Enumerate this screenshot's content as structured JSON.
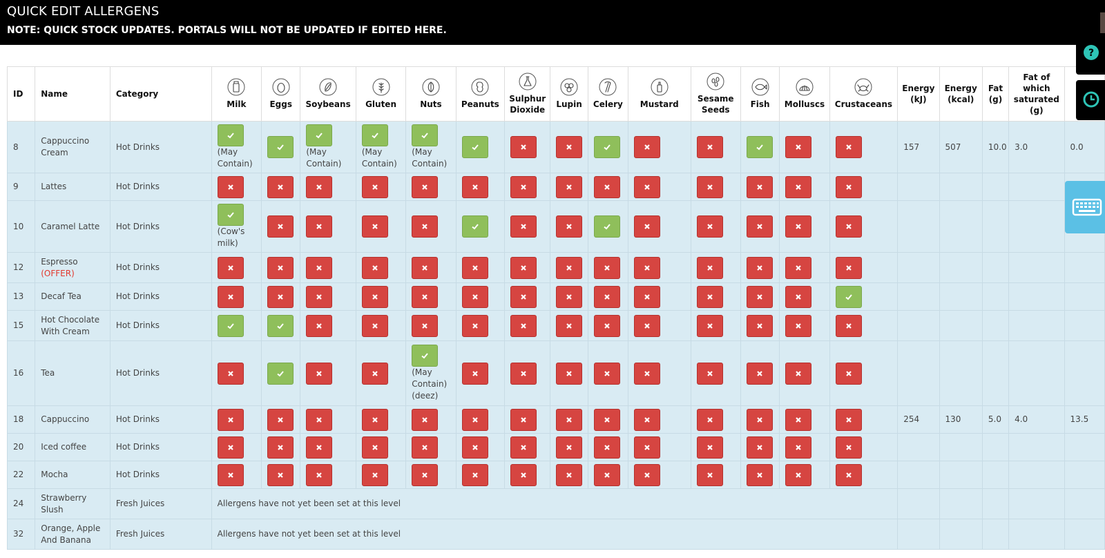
{
  "header": {
    "title": "QUICK EDIT ALLERGENS",
    "note": "NOTE: QUICK STOCK UPDATES. PORTALS WILL NOT BE UPDATED IF EDITED HERE."
  },
  "columns": {
    "id": "ID",
    "name": "Name",
    "category": "Category",
    "allergens": [
      {
        "key": "milk",
        "label": "Milk",
        "icon": "milk-icon"
      },
      {
        "key": "eggs",
        "label": "Eggs",
        "icon": "egg-icon"
      },
      {
        "key": "soybeans",
        "label": "Soybeans",
        "icon": "soybean-icon"
      },
      {
        "key": "gluten",
        "label": "Gluten",
        "icon": "wheat-icon"
      },
      {
        "key": "nuts",
        "label": "Nuts",
        "icon": "nut-icon"
      },
      {
        "key": "peanuts",
        "label": "Peanuts",
        "icon": "peanut-icon"
      },
      {
        "key": "sulphur",
        "label": "Sulphur Dioxide",
        "icon": "flask-icon"
      },
      {
        "key": "lupin",
        "label": "Lupin",
        "icon": "lupin-icon"
      },
      {
        "key": "celery",
        "label": "Celery",
        "icon": "celery-icon"
      },
      {
        "key": "mustard",
        "label": "Mustard",
        "icon": "mustard-icon"
      },
      {
        "key": "sesame",
        "label": "Sesame Seeds",
        "icon": "sesame-icon"
      },
      {
        "key": "fish",
        "label": "Fish",
        "icon": "fish-icon"
      },
      {
        "key": "molluscs",
        "label": "Molluscs",
        "icon": "shell-icon"
      },
      {
        "key": "crustaceans",
        "label": "Crustaceans",
        "icon": "crab-icon"
      }
    ],
    "nutrition": [
      "Energy (kJ)",
      "Energy (kcal)",
      "Fat (g)",
      "Fat of which saturated (g)",
      ""
    ]
  },
  "rows": [
    {
      "id": "8",
      "name": "Cappuccino Cream",
      "offer": "",
      "category": "Hot Drinks",
      "allergens": [
        {
          "v": "yes",
          "note": "(May Contain)"
        },
        {
          "v": "yes",
          "note": ""
        },
        {
          "v": "yes",
          "note": "(May Contain)"
        },
        {
          "v": "yes",
          "note": "(May Contain)"
        },
        {
          "v": "yes",
          "note": "(May Contain)"
        },
        {
          "v": "yes",
          "note": ""
        },
        {
          "v": "no",
          "note": ""
        },
        {
          "v": "no",
          "note": ""
        },
        {
          "v": "yes",
          "note": ""
        },
        {
          "v": "no",
          "note": ""
        },
        {
          "v": "no",
          "note": ""
        },
        {
          "v": "yes",
          "note": ""
        },
        {
          "v": "no",
          "note": ""
        },
        {
          "v": "no",
          "note": ""
        }
      ],
      "nutrition": [
        "157",
        "507",
        "10.0",
        "3.0",
        "0.0"
      ],
      "message": ""
    },
    {
      "id": "9",
      "name": "Lattes",
      "offer": "",
      "category": "Hot Drinks",
      "allergens": [
        "no",
        "no",
        "no",
        "no",
        "no",
        "no",
        "no",
        "no",
        "no",
        "no",
        "no",
        "no",
        "no",
        "no"
      ],
      "nutrition": [
        "",
        "",
        "",
        "",
        ""
      ],
      "message": ""
    },
    {
      "id": "10",
      "name": "Caramel Latte",
      "offer": "",
      "category": "Hot Drinks",
      "allergens": [
        {
          "v": "yes",
          "note": "(Cow's milk)"
        },
        "no",
        "no",
        "no",
        "no",
        "yes",
        "no",
        "no",
        "yes",
        "no",
        "no",
        "no",
        "no",
        "no"
      ],
      "nutrition": [
        "",
        "",
        "",
        "",
        ""
      ],
      "message": ""
    },
    {
      "id": "12",
      "name": "Espresso",
      "offer": "(OFFER)",
      "category": "Hot Drinks",
      "allergens": [
        "no",
        "no",
        "no",
        "no",
        "no",
        "no",
        "no",
        "no",
        "no",
        "no",
        "no",
        "no",
        "no",
        "no"
      ],
      "nutrition": [
        "",
        "",
        "",
        "",
        ""
      ],
      "message": ""
    },
    {
      "id": "13",
      "name": "Decaf Tea",
      "offer": "",
      "category": "Hot Drinks",
      "allergens": [
        "no",
        "no",
        "no",
        "no",
        "no",
        "no",
        "no",
        "no",
        "no",
        "no",
        "no",
        "no",
        "no",
        "yes"
      ],
      "nutrition": [
        "",
        "",
        "",
        "",
        ""
      ],
      "message": ""
    },
    {
      "id": "15",
      "name": "Hot Chocolate With Cream",
      "offer": "",
      "category": "Hot Drinks",
      "allergens": [
        "yes",
        "yes",
        "no",
        "no",
        "no",
        "no",
        "no",
        "no",
        "no",
        "no",
        "no",
        "no",
        "no",
        "no"
      ],
      "nutrition": [
        "",
        "",
        "",
        "",
        ""
      ],
      "message": ""
    },
    {
      "id": "16",
      "name": "Tea",
      "offer": "",
      "category": "Hot Drinks",
      "allergens": [
        "no",
        "yes",
        "no",
        "no",
        {
          "v": "yes",
          "note": "(May Contain) (deez)"
        },
        "no",
        "no",
        "no",
        "no",
        "no",
        "no",
        "no",
        "no",
        "no"
      ],
      "nutrition": [
        "",
        "",
        "",
        "",
        ""
      ],
      "message": ""
    },
    {
      "id": "18",
      "name": "Cappuccino",
      "offer": "",
      "category": "Hot Drinks",
      "allergens": [
        "no",
        "no",
        "no",
        "no",
        "no",
        "no",
        "no",
        "no",
        "no",
        "no",
        "no",
        "no",
        "no",
        "no"
      ],
      "nutrition": [
        "254",
        "130",
        "5.0",
        "4.0",
        "13.5"
      ],
      "message": ""
    },
    {
      "id": "20",
      "name": "Iced coffee",
      "offer": "",
      "category": "Hot Drinks",
      "allergens": [
        "no",
        "no",
        "no",
        "no",
        "no",
        "no",
        "no",
        "no",
        "no",
        "no",
        "no",
        "no",
        "no",
        "no"
      ],
      "nutrition": [
        "",
        "",
        "",
        "",
        ""
      ],
      "message": ""
    },
    {
      "id": "22",
      "name": "Mocha",
      "offer": "",
      "category": "Hot Drinks",
      "allergens": [
        "no",
        "no",
        "no",
        "no",
        "no",
        "no",
        "no",
        "no",
        "no",
        "no",
        "no",
        "no",
        "no",
        "no"
      ],
      "nutrition": [
        "",
        "",
        "",
        "",
        ""
      ],
      "message": ""
    },
    {
      "id": "24",
      "name": "Strawberry Slush",
      "offer": "",
      "category": "Fresh Juices",
      "allergens": [],
      "nutrition": [
        "",
        "",
        "",
        "",
        ""
      ],
      "message": "Allergens have not yet been set at this level"
    },
    {
      "id": "32",
      "name": "Orange, Apple And Banana",
      "offer": "",
      "category": "Fresh Juices",
      "allergens": [],
      "nutrition": [
        "",
        "",
        "",
        "",
        ""
      ],
      "message": "Allergens have not yet been set at this level"
    }
  ],
  "side_buttons": [
    {
      "name": "help",
      "icon": "question-icon"
    },
    {
      "name": "history",
      "icon": "clock-icon"
    },
    {
      "name": "keyboard",
      "icon": "keyboard-icon"
    }
  ],
  "colors": {
    "yes": "#8fbf5b",
    "no": "#d64541",
    "row_bg": "#d9ebf3",
    "offer": "#e2382e",
    "help_icon": "#2ec4b6",
    "keyboard_bg": "#5bc0e5"
  }
}
